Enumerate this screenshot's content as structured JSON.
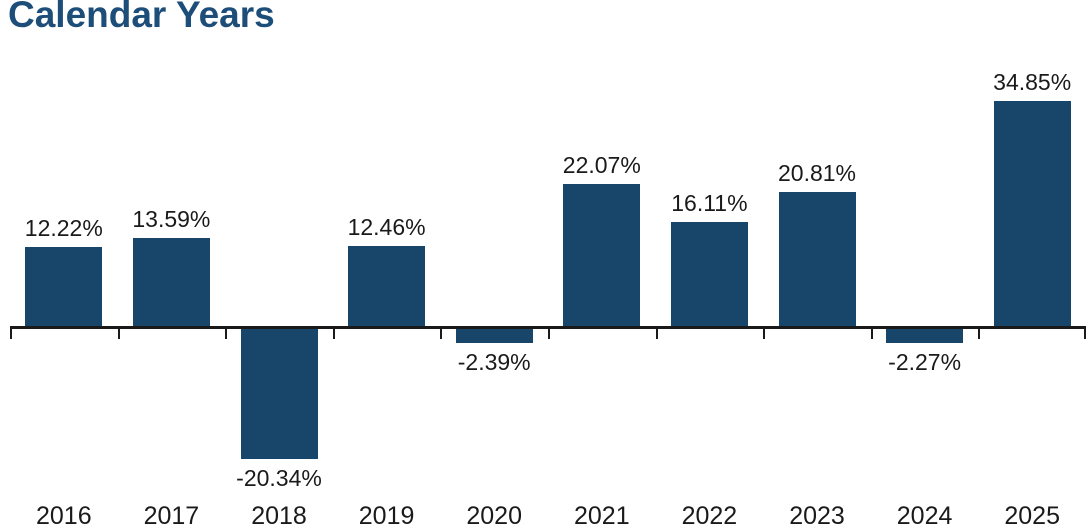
{
  "title": "Calendar Years",
  "chart_data": {
    "type": "bar",
    "title": "Calendar Years",
    "categories": [
      "2016",
      "2017",
      "2018",
      "2019",
      "2020",
      "2021",
      "2022",
      "2023",
      "2024",
      "2025"
    ],
    "values": [
      12.22,
      13.59,
      -20.34,
      12.46,
      -2.39,
      22.07,
      16.11,
      20.81,
      -2.27,
      34.85
    ],
    "value_labels": [
      "12.22%",
      "13.59%",
      "-20.34%",
      "12.46%",
      "-2.39%",
      "22.07%",
      "16.11%",
      "20.81%",
      "-2.27%",
      "34.85%"
    ],
    "xlabel": "",
    "ylabel": "",
    "ylim": [
      -25,
      40
    ],
    "baseline": 0,
    "grid": false,
    "legend": "none",
    "label_position": "outside-end",
    "colors": {
      "bar": "#17466a",
      "title": "#1d4e79",
      "axis": "#1a1a1a",
      "tick": "#1a1a1a",
      "value_label": "#1a1a1a",
      "year_label": "#1a1a1a"
    }
  }
}
